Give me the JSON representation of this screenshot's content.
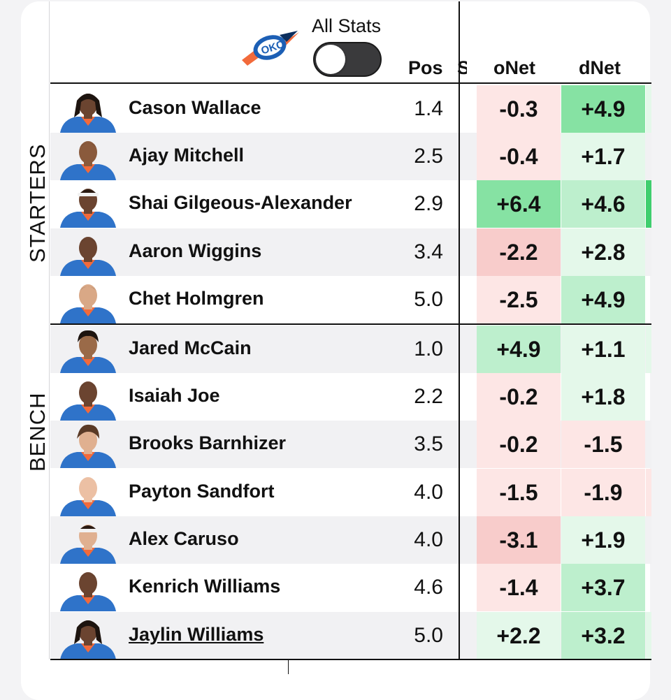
{
  "header": {
    "toggle_label": "All Stats",
    "toggle_on": false,
    "col_pos": "Pos",
    "col_hidden": "S",
    "col_onet": "oNet",
    "col_dnet": "dNet"
  },
  "groups": {
    "starters": "STARTERS",
    "bench": "BENCH"
  },
  "colors": {
    "neg_light": "#fde6e5",
    "neg_mid": "#f8cccb",
    "pos_light": "#e4f8ea",
    "pos_mid": "#bdefcd",
    "pos_strong": "#86e2a3",
    "pos_edge": "#3fce6e",
    "jersey_blue": "#2f73c9",
    "skin": "#8a5a3c"
  },
  "players": [
    {
      "name": "Cason Wallace",
      "pos": "1.4",
      "onet": "-0.3",
      "dnet": "+4.9",
      "on": "neg_light",
      "dn": "pos_strong",
      "edge": "pos_light",
      "skin": "#6b4430",
      "hair": "locs"
    },
    {
      "name": "Ajay Mitchell",
      "pos": "2.5",
      "onet": "-0.4",
      "dnet": "+1.7",
      "on": "neg_light",
      "dn": "pos_light",
      "edge": "",
      "skin": "#8a5a3c",
      "hair": "short"
    },
    {
      "name": "Shai Gilgeous-Alexander",
      "pos": "2.9",
      "onet": "+6.4",
      "dnet": "+4.6",
      "on": "pos_strong",
      "dn": "pos_mid",
      "edge": "pos_edge",
      "skin": "#6b4430",
      "hair": "band"
    },
    {
      "name": "Aaron Wiggins",
      "pos": "3.4",
      "onet": "-2.2",
      "dnet": "+2.8",
      "on": "neg_mid",
      "dn": "pos_light",
      "edge": "",
      "skin": "#6b4430",
      "hair": "short"
    },
    {
      "name": "Chet Holmgren",
      "pos": "5.0",
      "onet": "-2.5",
      "dnet": "+4.9",
      "on": "neg_light",
      "dn": "pos_mid",
      "edge": "",
      "skin": "#d9a886",
      "hair": "short"
    },
    {
      "name": "Jared McCain",
      "pos": "1.0",
      "onet": "+4.9",
      "dnet": "+1.1",
      "on": "pos_mid",
      "dn": "pos_light",
      "edge": "pos_light",
      "skin": "#9a6a48",
      "hair": "curly"
    },
    {
      "name": "Isaiah Joe",
      "pos": "2.2",
      "onet": "-0.2",
      "dnet": "+1.8",
      "on": "neg_light",
      "dn": "pos_light",
      "edge": "",
      "skin": "#6b4430",
      "hair": "short"
    },
    {
      "name": "Brooks Barnhizer",
      "pos": "3.5",
      "onet": "-0.2",
      "dnet": "-1.5",
      "on": "neg_light",
      "dn": "neg_light",
      "edge": "",
      "skin": "#e0b090",
      "hair": "mop"
    },
    {
      "name": "Payton Sandfort",
      "pos": "4.0",
      "onet": "-1.5",
      "dnet": "-1.9",
      "on": "neg_light",
      "dn": "neg_light",
      "edge": "neg_light",
      "skin": "#ecc0a4",
      "hair": "buzz"
    },
    {
      "name": "Alex Caruso",
      "pos": "4.0",
      "onet": "-3.1",
      "dnet": "+1.9",
      "on": "neg_mid",
      "dn": "pos_light",
      "edge": "",
      "skin": "#e0b090",
      "hair": "band"
    },
    {
      "name": "Kenrich Williams",
      "pos": "4.6",
      "onet": "-1.4",
      "dnet": "+3.7",
      "on": "neg_light",
      "dn": "pos_mid",
      "edge": "",
      "skin": "#6b4430",
      "hair": "short"
    },
    {
      "name": "Jaylin Williams",
      "pos": "5.0",
      "onet": "+2.2",
      "dnet": "+3.2",
      "on": "pos_light",
      "dn": "pos_mid",
      "edge": "pos_light",
      "skin": "#6b4430",
      "hair": "locs",
      "underline": true
    }
  ]
}
